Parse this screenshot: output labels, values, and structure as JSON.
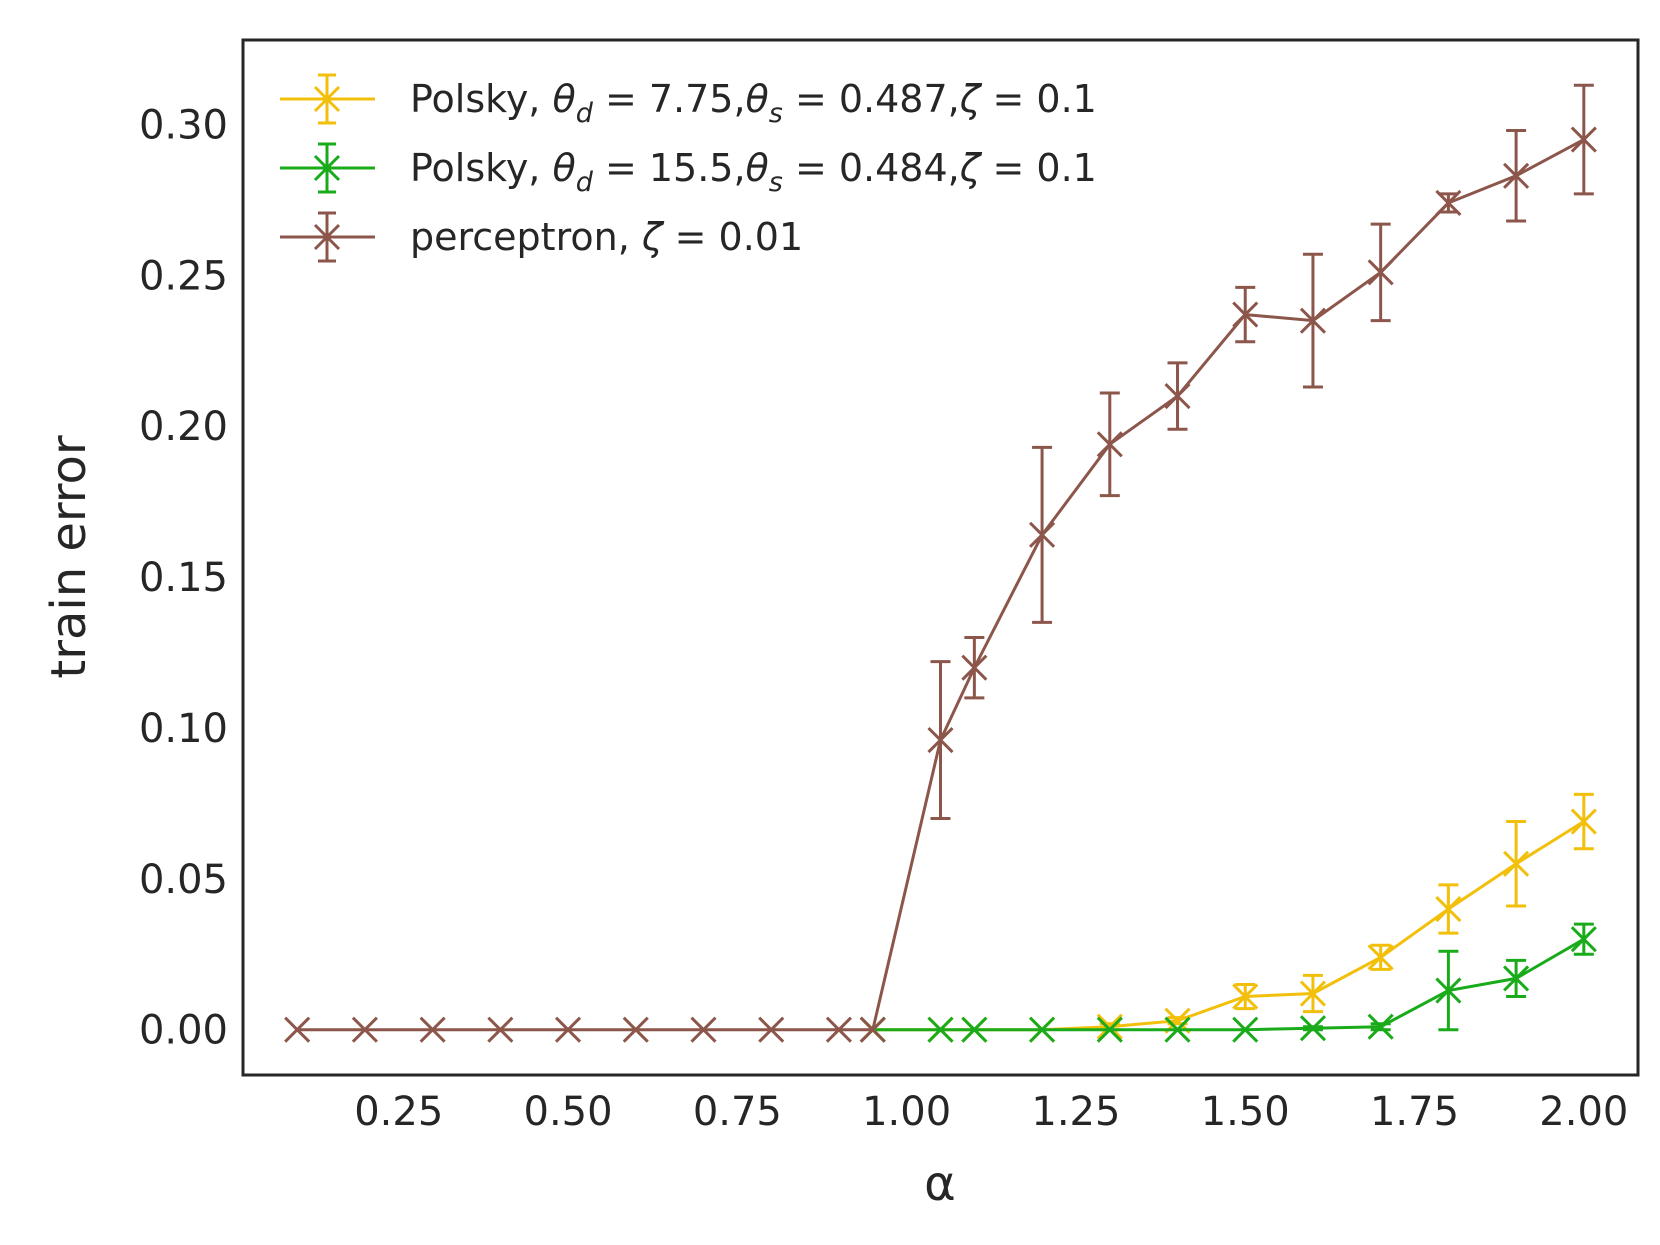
{
  "chart_data": {
    "type": "line",
    "title": "",
    "xlabel": "α",
    "ylabel": "train error",
    "xlim": [
      0.02,
      2.08
    ],
    "ylim": [
      -0.015,
      0.328
    ],
    "grid": false,
    "legend_position": "top-left",
    "x_ticks": [
      {
        "value": 0.25,
        "label": "0.25"
      },
      {
        "value": 0.5,
        "label": "0.50"
      },
      {
        "value": 0.75,
        "label": "0.75"
      },
      {
        "value": 1.0,
        "label": "1.00"
      },
      {
        "value": 1.25,
        "label": "1.25"
      },
      {
        "value": 1.5,
        "label": "1.50"
      },
      {
        "value": 1.75,
        "label": "1.75"
      },
      {
        "value": 2.0,
        "label": "2.00"
      }
    ],
    "y_ticks": [
      {
        "value": 0.0,
        "label": "0.00"
      },
      {
        "value": 0.05,
        "label": "0.05"
      },
      {
        "value": 0.1,
        "label": "0.10"
      },
      {
        "value": 0.15,
        "label": "0.15"
      },
      {
        "value": 0.2,
        "label": "0.20"
      },
      {
        "value": 0.25,
        "label": "0.25"
      },
      {
        "value": 0.3,
        "label": "0.30"
      }
    ],
    "series": [
      {
        "name": "Polsky, θd = 7.75, θs = 0.487, ζ = 0.1",
        "color": "#f2bf0a",
        "marker": "x",
        "x": [
          0.95,
          1.05,
          1.1,
          1.2,
          1.3,
          1.4,
          1.5,
          1.6,
          1.7,
          1.8,
          1.9,
          2.0
        ],
        "y": [
          0.0,
          0.0,
          0.0,
          0.0,
          0.001,
          0.003,
          0.011,
          0.012,
          0.024,
          0.04,
          0.055,
          0.069
        ],
        "err": [
          0,
          0,
          0,
          0,
          0.001,
          0.001,
          0.004,
          0.006,
          0.004,
          0.008,
          0.014,
          0.009
        ]
      },
      {
        "name": "Polsky, θd = 15.5, θs = 0.484, ζ = 0.1",
        "color": "#1aab1a",
        "marker": "x",
        "x": [
          0.95,
          1.05,
          1.1,
          1.2,
          1.3,
          1.4,
          1.5,
          1.6,
          1.7,
          1.8,
          1.9,
          2.0
        ],
        "y": [
          0.0,
          0.0,
          0.0,
          0.0,
          0.0,
          0.0,
          0.0,
          0.0005,
          0.001,
          0.013,
          0.017,
          0.03
        ],
        "err": [
          0,
          0,
          0,
          0,
          0,
          0,
          0,
          0.0005,
          0.001,
          0.013,
          0.006,
          0.005
        ]
      },
      {
        "name": "perceptron, ζ = 0.01",
        "color": "#8c564b",
        "marker": "x",
        "x": [
          0.1,
          0.2,
          0.3,
          0.4,
          0.5,
          0.6,
          0.7,
          0.8,
          0.9,
          0.95,
          1.05,
          1.1,
          1.2,
          1.3,
          1.4,
          1.5,
          1.6,
          1.7,
          1.8,
          1.9,
          2.0
        ],
        "y": [
          0.0,
          0.0,
          0.0,
          0.0,
          0.0,
          0.0,
          0.0,
          0.0,
          0.0,
          0.0,
          0.096,
          0.12,
          0.164,
          0.194,
          0.21,
          0.237,
          0.235,
          0.251,
          0.274,
          0.283,
          0.295
        ],
        "err": [
          0,
          0,
          0,
          0,
          0,
          0,
          0,
          0,
          0,
          0,
          0.026,
          0.01,
          0.029,
          0.017,
          0.011,
          0.009,
          0.022,
          0.016,
          0.003,
          0.015,
          0.018
        ]
      }
    ],
    "legend": [
      {
        "series": 0,
        "prefix": "Polsky, ",
        "parts": [
          {
            "sym": "θ",
            "sub": "d",
            "rest": " = 7.75,"
          },
          {
            "sym": "θ",
            "sub": "s",
            "rest": " = 0.487,"
          },
          {
            "sym": "ζ",
            "sub": "",
            "rest": " = 0.1"
          }
        ]
      },
      {
        "series": 1,
        "prefix": "Polsky, ",
        "parts": [
          {
            "sym": "θ",
            "sub": "d",
            "rest": " = 15.5,"
          },
          {
            "sym": "θ",
            "sub": "s",
            "rest": " = 0.484,"
          },
          {
            "sym": "ζ",
            "sub": "",
            "rest": " = 0.1"
          }
        ]
      },
      {
        "series": 2,
        "prefix": "perceptron, ",
        "parts": [
          {
            "sym": "ζ",
            "sub": "",
            "rest": " = 0.01"
          }
        ]
      }
    ]
  }
}
